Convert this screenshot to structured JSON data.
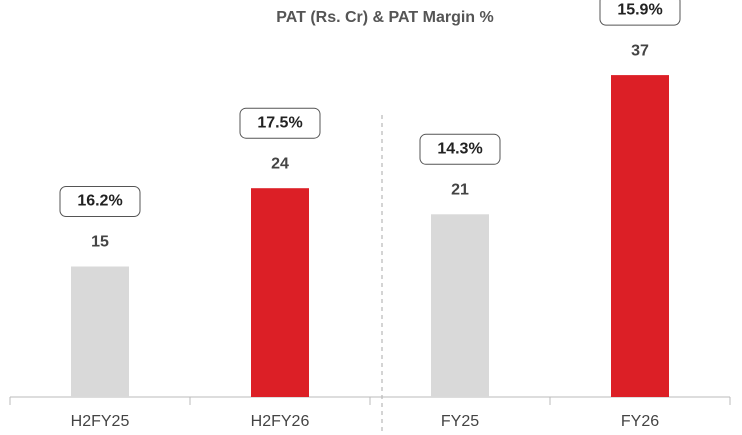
{
  "chart_data": {
    "type": "bar",
    "title": "PAT (Rs. Cr) & PAT Margin %",
    "categories": [
      "H2FY25",
      "H2FY26",
      "FY25",
      "FY26"
    ],
    "values": [
      15,
      24,
      21,
      37
    ],
    "colors": [
      "#d9d9d9",
      "#dc1f26",
      "#d9d9d9",
      "#dc1f26"
    ],
    "margin_labels": [
      "16.2%",
      "17.5%",
      "14.3%",
      "15.9%"
    ],
    "ylim": [
      0,
      40
    ]
  }
}
